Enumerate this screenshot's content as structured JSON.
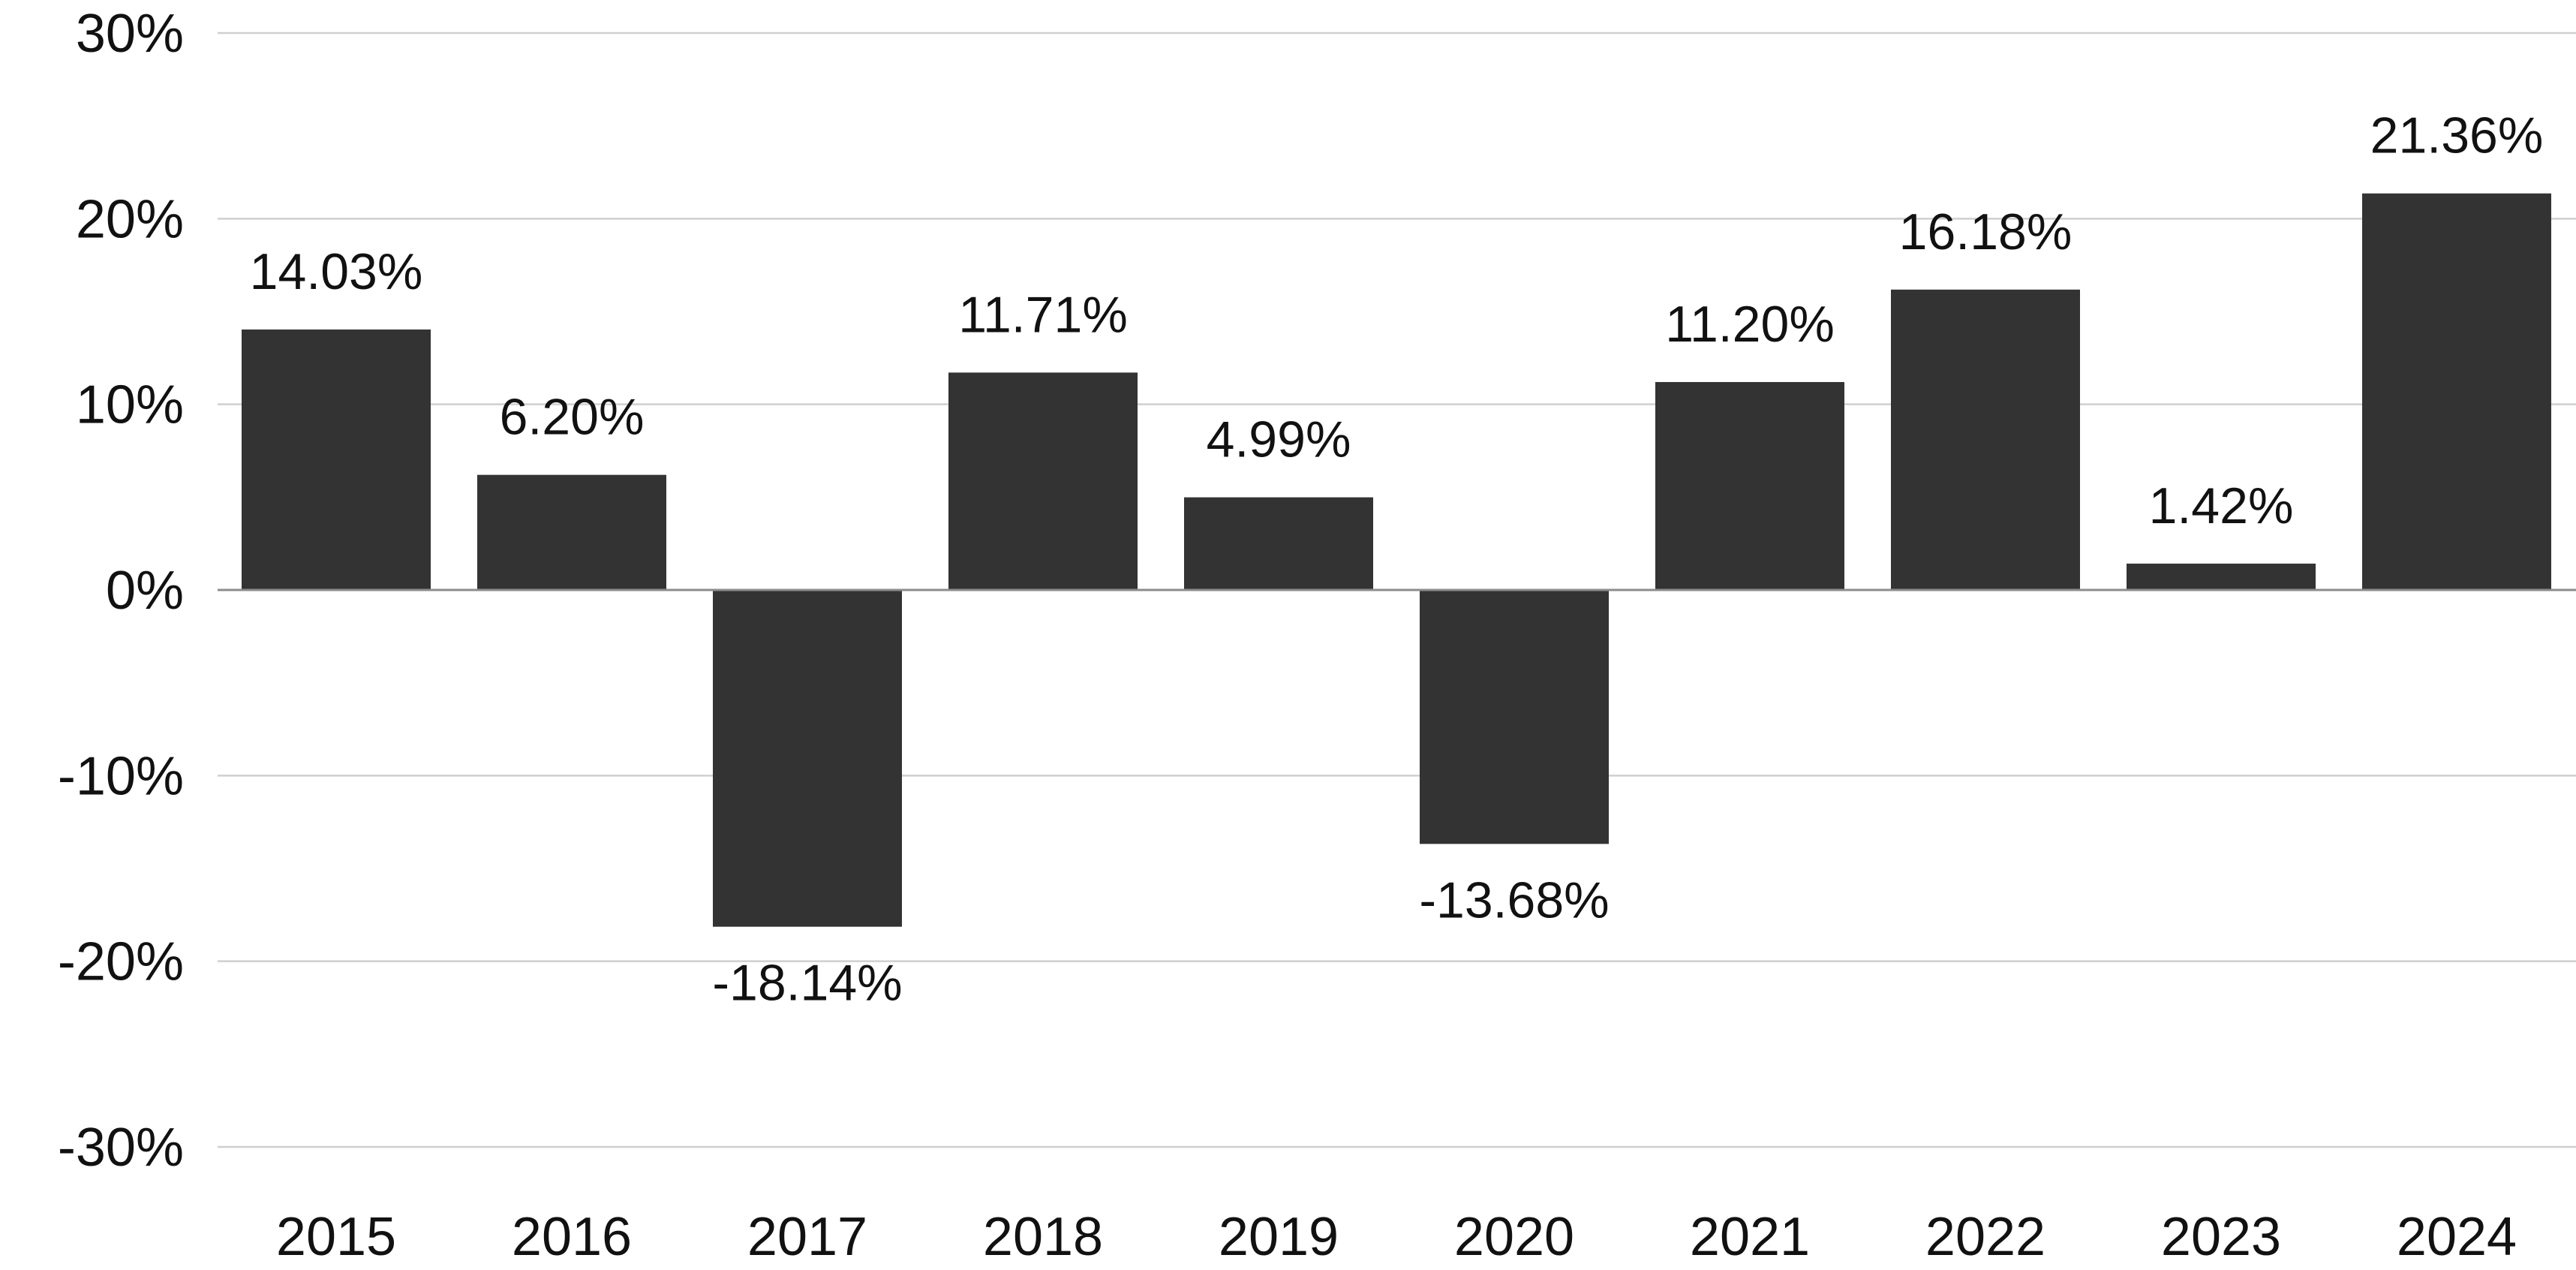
{
  "chart_data": {
    "type": "bar",
    "title": "",
    "xlabel": "",
    "ylabel": "",
    "categories": [
      "2015",
      "2016",
      "2017",
      "2018",
      "2019",
      "2020",
      "2021",
      "2022",
      "2023",
      "2024"
    ],
    "values": [
      14.03,
      6.2,
      -18.14,
      11.71,
      4.99,
      -13.68,
      11.2,
      16.18,
      1.42,
      21.36
    ],
    "data_labels": [
      "14.03%",
      "6.20%",
      "-18.14%",
      "11.71%",
      "4.99%",
      "-13.68%",
      "11.20%",
      "16.18%",
      "1.42%",
      "21.36%"
    ],
    "ylim": [
      -30,
      30
    ],
    "yticks": [
      30,
      20,
      10,
      0,
      -10,
      -20,
      -30
    ],
    "ytick_labels": [
      "30%",
      "20%",
      "10%",
      "0%",
      "-10%",
      "-20%",
      "-30%"
    ],
    "grid": true,
    "legend": "none",
    "colors": {
      "bar": "#333333",
      "grid": "#cfcfcf",
      "zero_line": "#8c8c8c",
      "text": "#111111"
    }
  }
}
